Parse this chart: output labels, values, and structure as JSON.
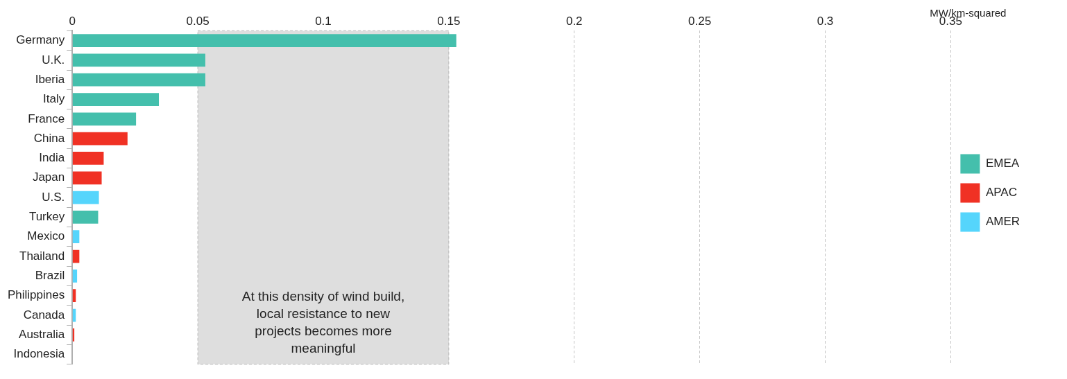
{
  "chart_data": {
    "type": "bar",
    "orientation": "horizontal",
    "xlabel": "MW/km-squared",
    "categories": [
      "Germany",
      "U.K.",
      "Iberia",
      "Italy",
      "France",
      "China",
      "India",
      "Japan",
      "U.S.",
      "Turkey",
      "Mexico",
      "Thailand",
      "Brazil",
      "Philippines",
      "Canada",
      "Australia",
      "Indonesia"
    ],
    "series": [
      {
        "name": "EMEA",
        "color": "#44bfac",
        "values": [
          0.153,
          0.053,
          0.053,
          0.0345,
          0.0254,
          null,
          null,
          null,
          null,
          0.0103,
          null,
          null,
          null,
          null,
          null,
          null,
          null
        ]
      },
      {
        "name": "APAC",
        "color": "#f03124",
        "values": [
          null,
          null,
          null,
          null,
          null,
          0.022,
          0.0125,
          0.0117,
          null,
          null,
          null,
          0.0028,
          null,
          0.0014,
          null,
          0.0008,
          null
        ]
      },
      {
        "name": "AMER",
        "color": "#55d5fc",
        "values": [
          null,
          null,
          null,
          null,
          null,
          null,
          null,
          null,
          0.0106,
          null,
          0.0028,
          null,
          0.0019,
          null,
          0.0014,
          null,
          null
        ]
      }
    ],
    "xlim": [
      0,
      0.35
    ],
    "xticks": [
      0,
      0.05,
      0.1,
      0.15,
      0.2,
      0.25,
      0.3,
      0.35
    ],
    "grid": "x",
    "legend": "right",
    "bands": [
      {
        "axis": "x",
        "from": 0.05,
        "to": 0.15,
        "label": "At this density of wind build, local resistance to new projects becomes more meaningful",
        "color": "#dedede"
      }
    ]
  }
}
